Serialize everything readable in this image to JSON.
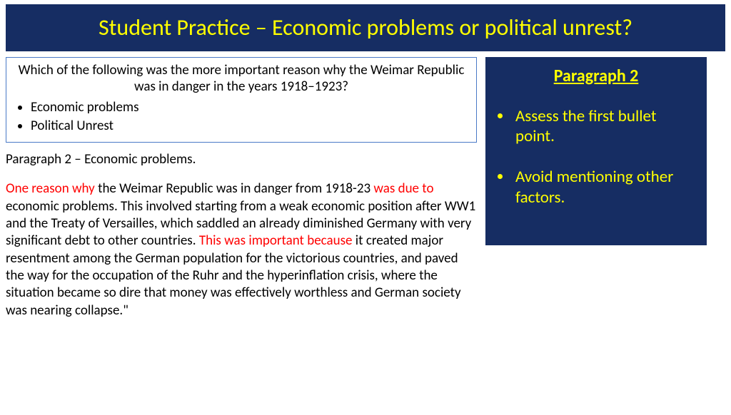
{
  "title": "Student Practice – Economic problems or political unrest?",
  "question": {
    "prompt": "Which of the following was the more important reason why the Weimar Republic was in danger in the years 1918–1923?",
    "bullets": [
      "Economic problems",
      "Political Unrest"
    ]
  },
  "paragraph": {
    "heading": "Paragraph 2 – Economic problems.",
    "r1": "One reason why ",
    "t1": "the Weimar Republic was in danger from 1918-23 ",
    "r2": "was due to ",
    "t2": "economic problems. This involved starting from a weak economic position after WW1 and the Treaty of Versailles, which saddled an already diminished Germany with very significant debt to other countries. ",
    "r3": "This was important because ",
    "t3": "it created major resentment among the German population for the victorious countries, and paved the way for the occupation of the Ruhr and the hyperinflation crisis, where the situation became so dire that money was effectively worthless and German society was nearing collapse.\""
  },
  "sidebar": {
    "title": "Paragraph 2",
    "items": [
      "Assess the first bullet point.",
      "Avoid mentioning other factors."
    ]
  },
  "colors": {
    "banner_bg": "#162d63",
    "banner_text": "#ffff00",
    "highlight_text": "#ff0000",
    "box_border": "#4a7ac7"
  }
}
